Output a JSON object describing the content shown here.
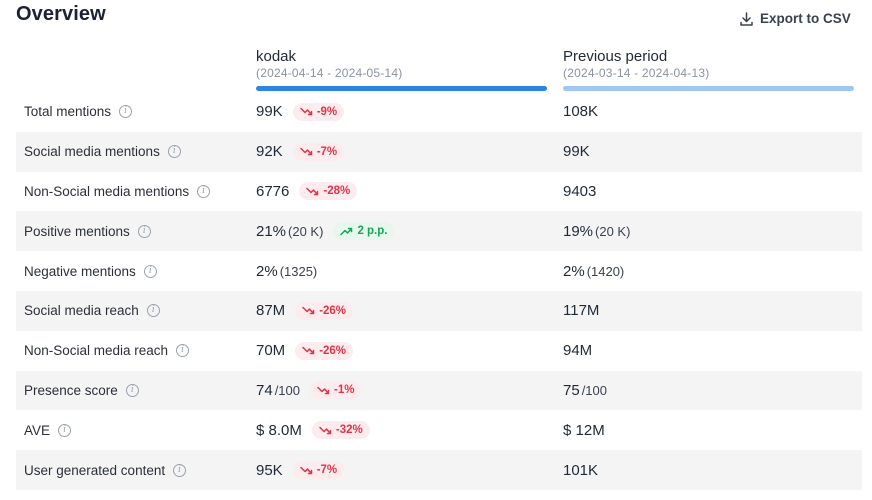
{
  "header": {
    "title": "Overview",
    "export_label": "Export to CSV"
  },
  "columns": {
    "current": {
      "name": "kodak",
      "range": "(2024-04-14 - 2024-05-14)",
      "color": "#2b86de"
    },
    "previous": {
      "name": "Previous period",
      "range": "(2024-03-14 - 2024-04-13)",
      "color": "#9ec8f2"
    }
  },
  "rows": [
    {
      "label": "Total mentions",
      "cur": "99K",
      "cur_sub": "",
      "change": "-9%",
      "dir": "down",
      "prev": "108K",
      "prev_sub": ""
    },
    {
      "label": "Social media mentions",
      "cur": "92K",
      "cur_sub": "",
      "change": "-7%",
      "dir": "down",
      "prev": "99K",
      "prev_sub": ""
    },
    {
      "label": "Non-Social media mentions",
      "cur": "6776",
      "cur_sub": "",
      "change": "-28%",
      "dir": "down",
      "prev": "9403",
      "prev_sub": ""
    },
    {
      "label": "Positive mentions",
      "cur": "21%",
      "cur_sub": "(20 K)",
      "change": "2 p.p.",
      "dir": "up",
      "prev": "19%",
      "prev_sub": "(20 K)"
    },
    {
      "label": "Negative mentions",
      "cur": "2%",
      "cur_sub": "(1325)",
      "change": "",
      "dir": "",
      "prev": "2%",
      "prev_sub": "(1420)"
    },
    {
      "label": "Social media reach",
      "cur": "87M",
      "cur_sub": "",
      "change": "-26%",
      "dir": "down",
      "prev": "117M",
      "prev_sub": ""
    },
    {
      "label": "Non-Social media reach",
      "cur": "70M",
      "cur_sub": "",
      "change": "-26%",
      "dir": "down",
      "prev": "94M",
      "prev_sub": ""
    },
    {
      "label": "Presence score",
      "cur": "74",
      "cur_sub": "/100",
      "change": "-1%",
      "dir": "down",
      "prev": "75",
      "prev_sub": "/100"
    },
    {
      "label": "AVE",
      "cur": "$ 8.0M",
      "cur_sub": "",
      "change": "-32%",
      "dir": "down",
      "prev": "$ 12M",
      "prev_sub": ""
    },
    {
      "label": "User generated content",
      "cur": "95K",
      "cur_sub": "",
      "change": "-7%",
      "dir": "down",
      "prev": "101K",
      "prev_sub": ""
    }
  ],
  "icons": {
    "export": "download-icon",
    "info": "info-icon",
    "trend_down": "trend-down-icon",
    "trend_up": "trend-up-icon"
  },
  "colors": {
    "negative": "#e0344a",
    "positive": "#17a554",
    "row_shade": "#f4f4f5"
  }
}
